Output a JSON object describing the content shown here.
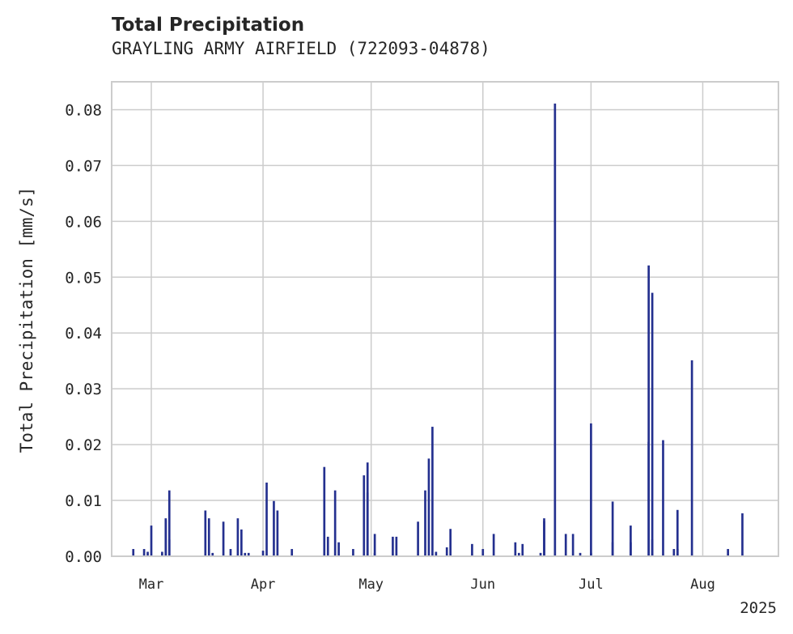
{
  "header": {
    "title": "Total Precipitation",
    "subtitle": "GRAYLING ARMY AIRFIELD (722093-04878)"
  },
  "colors": {
    "series": "#24308f",
    "grid": "#cccccc",
    "frame": "#cccccc",
    "text": "#262626"
  },
  "chart_data": {
    "type": "bar",
    "title": "Total Precipitation",
    "subtitle": "GRAYLING ARMY AIRFIELD (722093-04878)",
    "xlabel": "",
    "ylabel": "Total Precipitation [mm/s]",
    "xlim": [
      "2025-02-18",
      "2025-08-22"
    ],
    "ylim": [
      0,
      0.085
    ],
    "yticks": [
      0.0,
      0.01,
      0.02,
      0.03,
      0.04,
      0.05,
      0.06,
      0.07,
      0.08
    ],
    "ytick_labels": [
      "0.00",
      "0.01",
      "0.02",
      "0.03",
      "0.04",
      "0.05",
      "0.06",
      "0.07",
      "0.08"
    ],
    "xticks": [
      "2025-03-01",
      "2025-04-01",
      "2025-05-01",
      "2025-06-01",
      "2025-07-01",
      "2025-08-01"
    ],
    "xtick_labels": [
      "Mar",
      "Apr",
      "May",
      "Jun",
      "Jul",
      "Aug"
    ],
    "x_offset_label": "2025",
    "grid": true,
    "series": [
      {
        "x": [
          "2025-02-24",
          "2025-02-27",
          "2025-02-28",
          "2025-03-01",
          "2025-03-04",
          "2025-03-05",
          "2025-03-05",
          "2025-03-06",
          "2025-03-06",
          "2025-03-16",
          "2025-03-17",
          "2025-03-18",
          "2025-03-21",
          "2025-03-23",
          "2025-03-25",
          "2025-03-26",
          "2025-03-27",
          "2025-03-28",
          "2025-04-01",
          "2025-04-02",
          "2025-04-04",
          "2025-04-05",
          "2025-04-09",
          "2025-04-18",
          "2025-04-19",
          "2025-04-21",
          "2025-04-22",
          "2025-04-26",
          "2025-04-29",
          "2025-04-30",
          "2025-04-30",
          "2025-05-02",
          "2025-05-02",
          "2025-05-07",
          "2025-05-08",
          "2025-05-14",
          "2025-05-16",
          "2025-05-17",
          "2025-05-18",
          "2025-05-19",
          "2025-05-22",
          "2025-05-23",
          "2025-05-29",
          "2025-06-01",
          "2025-06-04",
          "2025-06-10",
          "2025-06-11",
          "2025-06-12",
          "2025-06-17",
          "2025-06-18",
          "2025-06-18",
          "2025-06-21",
          "2025-06-24",
          "2025-06-26",
          "2025-06-28",
          "2025-07-01",
          "2025-07-01",
          "2025-07-07",
          "2025-07-07",
          "2025-07-12",
          "2025-07-12",
          "2025-07-17",
          "2025-07-17",
          "2025-07-18",
          "2025-07-18",
          "2025-07-21",
          "2025-07-24",
          "2025-07-25",
          "2025-07-25",
          "2025-07-29",
          "2025-08-08",
          "2025-08-12"
        ],
        "values": [
          0.0013,
          0.0013,
          0.0008,
          0.0055,
          0.0008,
          0.0065,
          0.0068,
          0.0118,
          0.003,
          0.0082,
          0.0068,
          0.0006,
          0.0062,
          0.0013,
          0.0068,
          0.0048,
          0.0006,
          0.0006,
          0.001,
          0.0132,
          0.0099,
          0.0082,
          0.0013,
          0.016,
          0.0035,
          0.0118,
          0.0025,
          0.0013,
          0.0145,
          0.0168,
          0.0114,
          0.004,
          0.0006,
          0.0035,
          0.0035,
          0.0062,
          0.0118,
          0.0175,
          0.0232,
          0.0008,
          0.0016,
          0.0049,
          0.0022,
          0.0013,
          0.004,
          0.0025,
          0.0006,
          0.0022,
          0.0006,
          0.0063,
          0.0068,
          0.0811,
          0.004,
          0.004,
          0.0006,
          0.0006,
          0.0238,
          0.0025,
          0.0098,
          0.0055,
          0.0025,
          0.0205,
          0.0521,
          0.0472,
          0.003,
          0.0208,
          0.0013,
          0.0083,
          0.0013,
          0.0351,
          0.0013,
          0.0077
        ]
      }
    ]
  }
}
